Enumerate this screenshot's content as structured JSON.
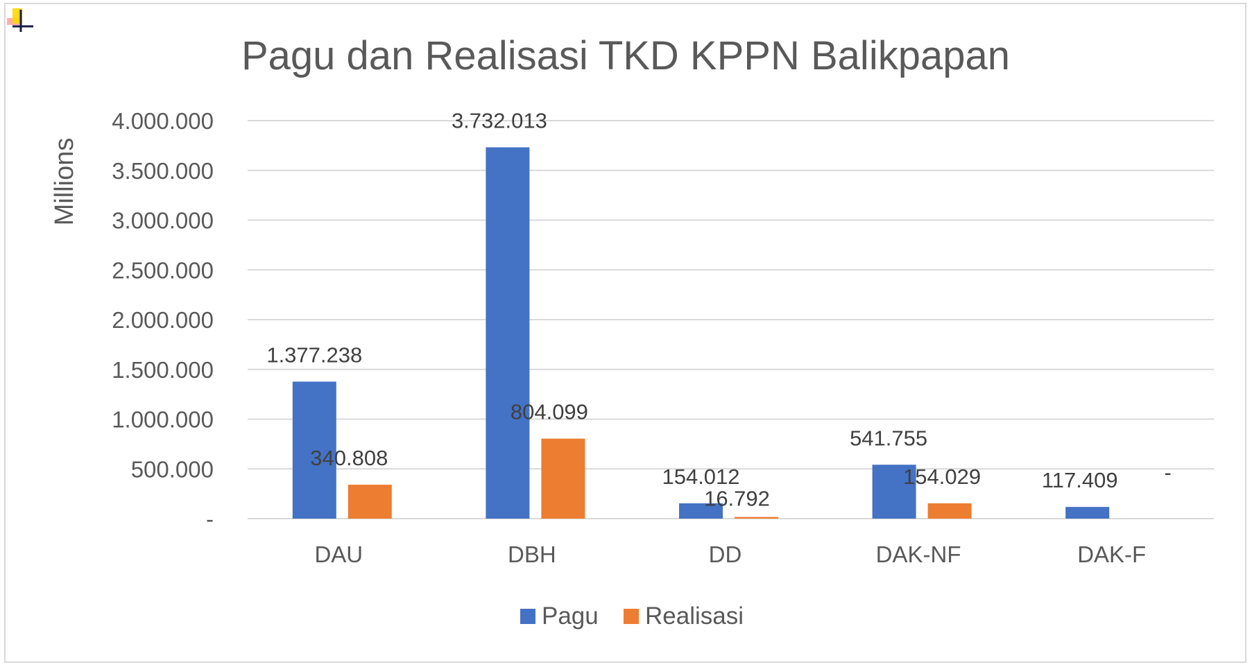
{
  "colors": {
    "pagu": "#4472c4",
    "realisasi": "#ed7d31",
    "gridline": "#d9d9d9",
    "text": "#595959",
    "label": "#404040"
  },
  "chart_data": {
    "type": "bar",
    "title": "Pagu dan Realisasi TKD KPPN Balikpapan",
    "xlabel": "",
    "ylabel": "Millions",
    "ylim": [
      0,
      4000000
    ],
    "yticks": [
      0,
      500000,
      1000000,
      1500000,
      2000000,
      2500000,
      3000000,
      3500000,
      4000000
    ],
    "ytick_labels": [
      "-",
      "500.000",
      "1.000.000",
      "1.500.000",
      "2.000.000",
      "2.500.000",
      "3.000.000",
      "3.500.000",
      "4.000.000"
    ],
    "categories": [
      "DAU",
      "DBH",
      "DD",
      "DAK-NF",
      "DAK-F"
    ],
    "series": [
      {
        "name": "Pagu",
        "color": "#4472c4",
        "values": [
          1377238,
          3732013,
          154012,
          541755,
          117409
        ],
        "labels": [
          "1.377.238",
          "3.732.013",
          "154.012",
          "541.755",
          "117.409"
        ]
      },
      {
        "name": "Realisasi",
        "color": "#ed7d31",
        "values": [
          340808,
          804099,
          16792,
          154029,
          0
        ],
        "labels": [
          "340.808",
          "804.099",
          "16.792",
          "154.029",
          "-"
        ]
      }
    ],
    "grid": true,
    "legend_position": "bottom"
  }
}
